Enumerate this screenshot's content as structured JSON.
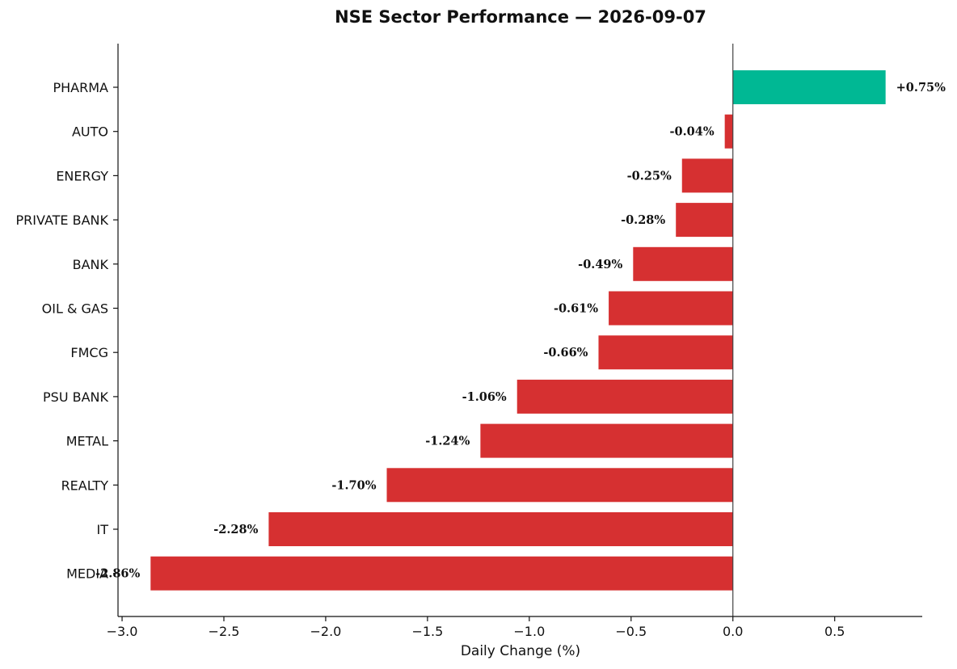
{
  "chart_data": {
    "type": "bar",
    "orientation": "horizontal",
    "title": "NSE Sector Performance — 2026-09-07",
    "xlabel": "Daily Change (%)",
    "ylabel": "",
    "xlim": [
      -3.02,
      0.93
    ],
    "xticks": [
      -3.0,
      -2.5,
      -2.0,
      -1.5,
      -1.0,
      -0.5,
      0.0,
      0.5
    ],
    "xtick_labels": [
      "−3.0",
      "−2.5",
      "−2.0",
      "−1.5",
      "−1.0",
      "−0.5",
      "0.0",
      "0.5"
    ],
    "grid": false,
    "legend": "none",
    "zero_line": true,
    "colors": {
      "positive": "#00b894",
      "negative": "#d63031"
    },
    "categories": [
      "PHARMA",
      "AUTO",
      "ENERGY",
      "PRIVATE BANK",
      "BANK",
      "OIL & GAS",
      "FMCG",
      "PSU BANK",
      "METAL",
      "REALTY",
      "IT",
      "MEDIA"
    ],
    "values": [
      0.75,
      -0.04,
      -0.25,
      -0.28,
      -0.49,
      -0.61,
      -0.66,
      -1.06,
      -1.24,
      -1.7,
      -2.28,
      -2.86
    ],
    "data_labels": [
      "+0.75%",
      "-0.04%",
      "-0.25%",
      "-0.28%",
      "-0.49%",
      "-0.61%",
      "-0.66%",
      "-1.06%",
      "-1.24%",
      "-1.70%",
      "-2.28%",
      "-2.86%"
    ]
  }
}
